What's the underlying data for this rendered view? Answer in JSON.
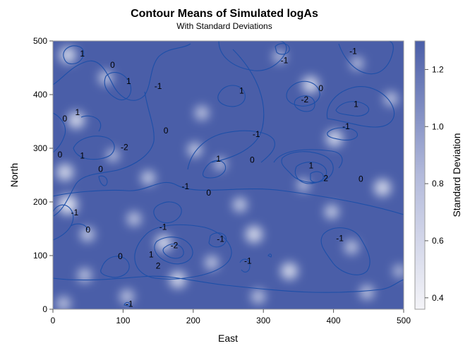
{
  "chart_data": {
    "type": "contour",
    "title": "Contour Means of Simulated logAs",
    "subtitle": "With Standard Deviations",
    "xlabel": "East",
    "ylabel": "North",
    "xlim": [
      0,
      500
    ],
    "ylim": [
      0,
      500
    ],
    "x_ticks": [
      "0",
      "100",
      "200",
      "300",
      "400",
      "500"
    ],
    "y_ticks": [
      "0",
      "100",
      "200",
      "300",
      "400",
      "500"
    ],
    "colorbar": {
      "label": "Standard Deviation",
      "range": [
        0.36,
        1.3
      ],
      "ticks": [
        "0.4",
        "0.6",
        "0.8",
        "1.0",
        "1.2"
      ],
      "low_color": "#f4f4f8",
      "high_color": "#4a5ea8"
    },
    "contour_color": "#1d4fa8",
    "contour_labels": [
      {
        "text": "1",
        "x": 42,
        "y": 476
      },
      {
        "text": "0",
        "x": 85,
        "y": 455
      },
      {
        "text": "1",
        "x": 108,
        "y": 425
      },
      {
        "text": "-1",
        "x": 150,
        "y": 416
      },
      {
        "text": "0",
        "x": 17,
        "y": 355
      },
      {
        "text": "1",
        "x": 35,
        "y": 367
      },
      {
        "text": "0",
        "x": 161,
        "y": 333
      },
      {
        "text": "-2",
        "x": 102,
        "y": 302
      },
      {
        "text": "0",
        "x": 10,
        "y": 288
      },
      {
        "text": "1",
        "x": 42,
        "y": 286
      },
      {
        "text": "0",
        "x": 68,
        "y": 261
      },
      {
        "text": "-1",
        "x": 31,
        "y": 180
      },
      {
        "text": "0",
        "x": 50,
        "y": 148
      },
      {
        "text": "-1",
        "x": 330,
        "y": 464
      },
      {
        "text": "-1",
        "x": 428,
        "y": 481
      },
      {
        "text": "1",
        "x": 269,
        "y": 407
      },
      {
        "text": "0",
        "x": 382,
        "y": 412
      },
      {
        "text": "-2",
        "x": 359,
        "y": 391
      },
      {
        "text": "1",
        "x": 432,
        "y": 382
      },
      {
        "text": "-1",
        "x": 290,
        "y": 326
      },
      {
        "text": "-1",
        "x": 418,
        "y": 341
      },
      {
        "text": "0",
        "x": 284,
        "y": 278
      },
      {
        "text": "1",
        "x": 236,
        "y": 280
      },
      {
        "text": "1",
        "x": 368,
        "y": 268
      },
      {
        "text": "2",
        "x": 389,
        "y": 244
      },
      {
        "text": "0",
        "x": 439,
        "y": 243
      },
      {
        "text": "-1",
        "x": 189,
        "y": 229
      },
      {
        "text": "0",
        "x": 222,
        "y": 217
      },
      {
        "text": "-1",
        "x": 157,
        "y": 153
      },
      {
        "text": "-1",
        "x": 239,
        "y": 131
      },
      {
        "text": "-1",
        "x": 409,
        "y": 132
      },
      {
        "text": "-2",
        "x": 173,
        "y": 119
      },
      {
        "text": "0",
        "x": 96,
        "y": 99
      },
      {
        "text": "1",
        "x": 140,
        "y": 102
      },
      {
        "text": "2",
        "x": 150,
        "y": 81
      },
      {
        "text": "-1",
        "x": 278,
        "y": 90
      },
      {
        "text": "-1",
        "x": 109,
        "y": 10
      }
    ]
  }
}
